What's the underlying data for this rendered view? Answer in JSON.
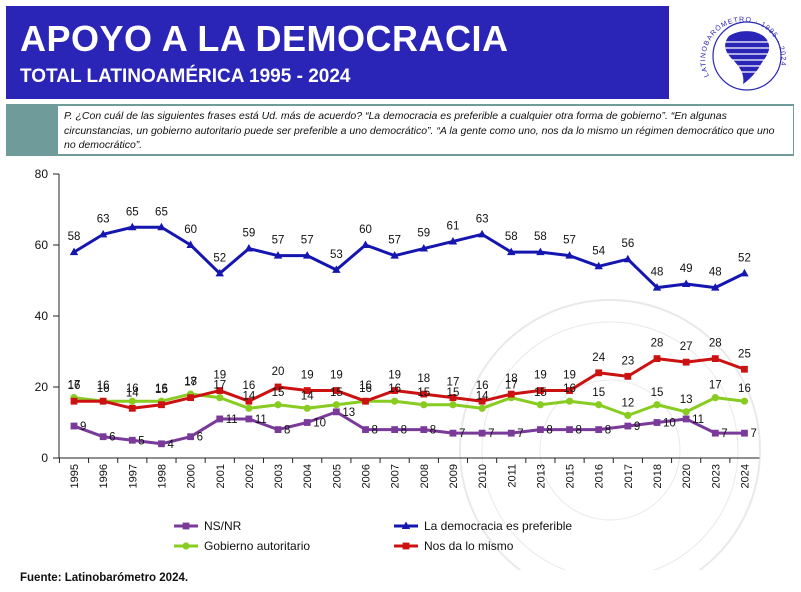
{
  "header": {
    "title": "APOYO A LA DEMOCRACIA",
    "subtitle": "TOTAL LATINOAMÉRICA 1995 - 2024",
    "logo_text": "LATINOBARÓMETRO · 1995 · 2024 · OPINIÓN PÚBLICA LATINOAMERICANA"
  },
  "question": "P. ¿Con cuál de las siguientes frases está Ud. más de acuerdo? “La democracia es preferible a cualquier otra forma de gobierno”. “En algunas circunstancias, un gobierno autoritario puede ser preferible a uno democrático”. “A la gente como uno, nos da lo mismo un régimen democrático que uno no democrático”.",
  "source": "Fuente: Latinobarómetro 2024.",
  "colors": {
    "header_bg": "#2a25b6",
    "question_bar": "#6f9c9a",
    "democracia": "#1515b0",
    "nos_da": "#cc1111",
    "autoritario": "#88cc22",
    "nsnr": "#7a3a9a"
  },
  "chart_data": {
    "type": "line",
    "title": "APOYO A LA DEMOCRACIA",
    "ylim": [
      0,
      80
    ],
    "yticks": [
      0,
      20,
      40,
      60,
      80
    ],
    "categories": [
      "1995",
      "1996",
      "1997",
      "1998",
      "2000",
      "2001",
      "2002",
      "2003",
      "2004",
      "2005",
      "2006",
      "2007",
      "2008",
      "2009",
      "2010",
      "2011",
      "2013",
      "2015",
      "2016",
      "2017",
      "2018",
      "2020",
      "2023",
      "2024"
    ],
    "series": [
      {
        "key": "democracia",
        "name": "La democracia es preferible",
        "marker": "triangle",
        "values": [
          58,
          63,
          65,
          65,
          60,
          52,
          59,
          57,
          57,
          53,
          60,
          57,
          59,
          61,
          63,
          58,
          58,
          57,
          54,
          56,
          48,
          49,
          48,
          52
        ]
      },
      {
        "key": "nos_da",
        "name": "Nos da lo mismo",
        "marker": "square",
        "values": [
          16,
          16,
          14,
          15,
          17,
          19,
          16,
          20,
          19,
          19,
          16,
          19,
          18,
          17,
          16,
          18,
          19,
          19,
          24,
          23,
          28,
          27,
          28,
          25
        ]
      },
      {
        "key": "autoritario",
        "name": "Gobierno autoritario",
        "marker": "circle",
        "values": [
          17,
          16,
          16,
          16,
          18,
          17,
          14,
          15,
          14,
          15,
          16,
          16,
          15,
          15,
          14,
          17,
          15,
          16,
          15,
          12,
          15,
          13,
          17,
          16
        ]
      },
      {
        "key": "nsnr",
        "name": "NS/NR",
        "marker": "square",
        "values": [
          9,
          6,
          5,
          4,
          6,
          11,
          11,
          8,
          10,
          13,
          8,
          8,
          8,
          7,
          7,
          7,
          8,
          8,
          8,
          9,
          10,
          11,
          7,
          7
        ]
      }
    ],
    "legend": [
      "NS/NR",
      "La democracia es preferible",
      "Gobierno autoritario",
      "Nos da lo mismo"
    ],
    "legend_position": "bottom"
  }
}
